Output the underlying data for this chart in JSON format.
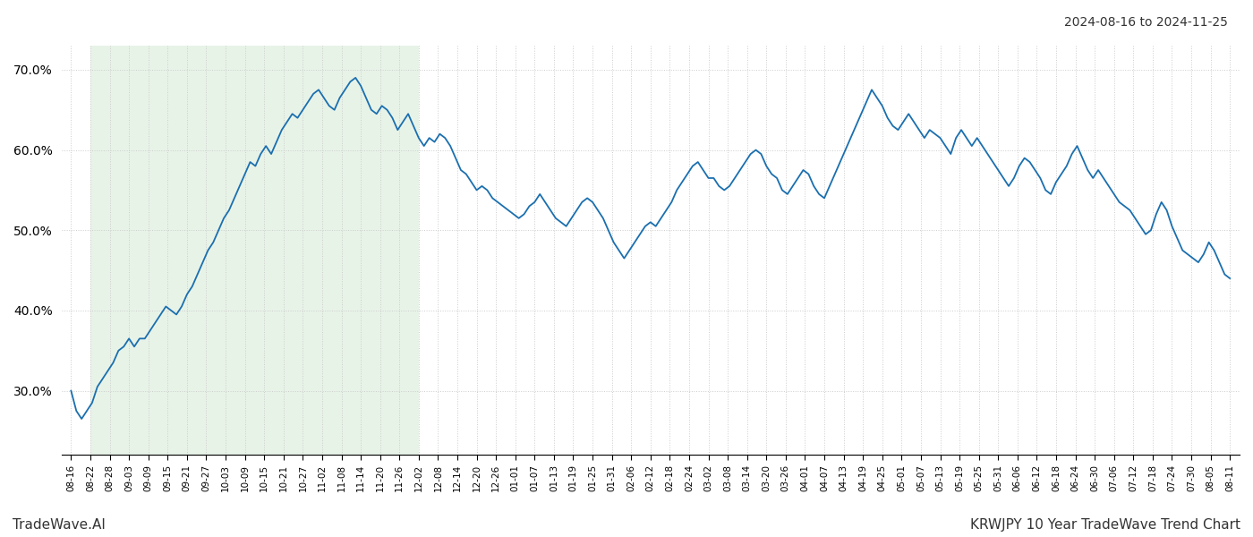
{
  "title_top_right": "2024-08-16 to 2024-11-25",
  "title_bottom_right": "KRWJPY 10 Year TradeWave Trend Chart",
  "title_bottom_left": "TradeWave.AI",
  "line_color": "#1a6faf",
  "line_width": 1.3,
  "shade_color": "#d6ead6",
  "shade_alpha": 0.55,
  "background_color": "#ffffff",
  "grid_color": "#cccccc",
  "grid_style": ":",
  "ylim_min": 22.0,
  "ylim_max": 73.0,
  "yticks": [
    30.0,
    40.0,
    50.0,
    60.0,
    70.0
  ],
  "xtick_labels": [
    "08-16",
    "08-22",
    "08-28",
    "09-03",
    "09-09",
    "09-15",
    "09-21",
    "09-27",
    "10-03",
    "10-09",
    "10-15",
    "10-21",
    "10-27",
    "11-02",
    "11-08",
    "11-14",
    "11-20",
    "11-26",
    "12-02",
    "12-08",
    "12-14",
    "12-20",
    "12-26",
    "01-01",
    "01-07",
    "01-13",
    "01-19",
    "01-25",
    "01-31",
    "02-06",
    "02-12",
    "02-18",
    "02-24",
    "03-02",
    "03-08",
    "03-14",
    "03-20",
    "03-26",
    "04-01",
    "04-07",
    "04-13",
    "04-19",
    "04-25",
    "05-01",
    "05-07",
    "05-13",
    "05-19",
    "05-25",
    "05-31",
    "06-06",
    "06-12",
    "06-18",
    "06-24",
    "06-30",
    "07-06",
    "07-12",
    "07-18",
    "07-24",
    "07-30",
    "08-05",
    "08-11"
  ],
  "shade_start_label": "08-22",
  "shade_end_label": "12-02",
  "data_values": [
    30.0,
    27.5,
    26.5,
    27.5,
    28.5,
    30.5,
    31.5,
    32.5,
    33.5,
    35.0,
    35.5,
    36.5,
    35.5,
    36.5,
    36.5,
    37.5,
    38.5,
    39.5,
    40.5,
    40.0,
    39.5,
    40.5,
    42.0,
    43.0,
    44.5,
    46.0,
    47.5,
    48.5,
    50.0,
    51.5,
    52.5,
    54.0,
    55.5,
    57.0,
    58.5,
    58.0,
    59.5,
    60.5,
    59.5,
    61.0,
    62.5,
    63.5,
    64.5,
    64.0,
    65.0,
    66.0,
    67.0,
    67.5,
    66.5,
    65.5,
    65.0,
    66.5,
    67.5,
    68.5,
    69.0,
    68.0,
    66.5,
    65.0,
    64.5,
    65.5,
    65.0,
    64.0,
    62.5,
    63.5,
    64.5,
    63.0,
    61.5,
    60.5,
    61.5,
    61.0,
    62.0,
    61.5,
    60.5,
    59.0,
    57.5,
    57.0,
    56.0,
    55.0,
    55.5,
    55.0,
    54.0,
    53.5,
    53.0,
    52.5,
    52.0,
    51.5,
    52.0,
    53.0,
    53.5,
    54.5,
    53.5,
    52.5,
    51.5,
    51.0,
    50.5,
    51.5,
    52.5,
    53.5,
    54.0,
    53.5,
    52.5,
    51.5,
    50.0,
    48.5,
    47.5,
    46.5,
    47.5,
    48.5,
    49.5,
    50.5,
    51.0,
    50.5,
    51.5,
    52.5,
    53.5,
    55.0,
    56.0,
    57.0,
    58.0,
    58.5,
    57.5,
    56.5,
    56.5,
    55.5,
    55.0,
    55.5,
    56.5,
    57.5,
    58.5,
    59.5,
    60.0,
    59.5,
    58.0,
    57.0,
    56.5,
    55.0,
    54.5,
    55.5,
    56.5,
    57.5,
    57.0,
    55.5,
    54.5,
    54.0,
    55.5,
    57.0,
    58.5,
    60.0,
    61.5,
    63.0,
    64.5,
    66.0,
    67.5,
    66.5,
    65.5,
    64.0,
    63.0,
    62.5,
    63.5,
    64.5,
    63.5,
    62.5,
    61.5,
    62.5,
    62.0,
    61.5,
    60.5,
    59.5,
    61.5,
    62.5,
    61.5,
    60.5,
    61.5,
    60.5,
    59.5,
    58.5,
    57.5,
    56.5,
    55.5,
    56.5,
    58.0,
    59.0,
    58.5,
    57.5,
    56.5,
    55.0,
    54.5,
    56.0,
    57.0,
    58.0,
    59.5,
    60.5,
    59.0,
    57.5,
    56.5,
    57.5,
    56.5,
    55.5,
    54.5,
    53.5,
    53.0,
    52.5,
    51.5,
    50.5,
    49.5,
    50.0,
    52.0,
    53.5,
    52.5,
    50.5,
    49.0,
    47.5,
    47.0,
    46.5,
    46.0,
    47.0,
    48.5,
    47.5,
    46.0,
    44.5,
    44.0
  ]
}
